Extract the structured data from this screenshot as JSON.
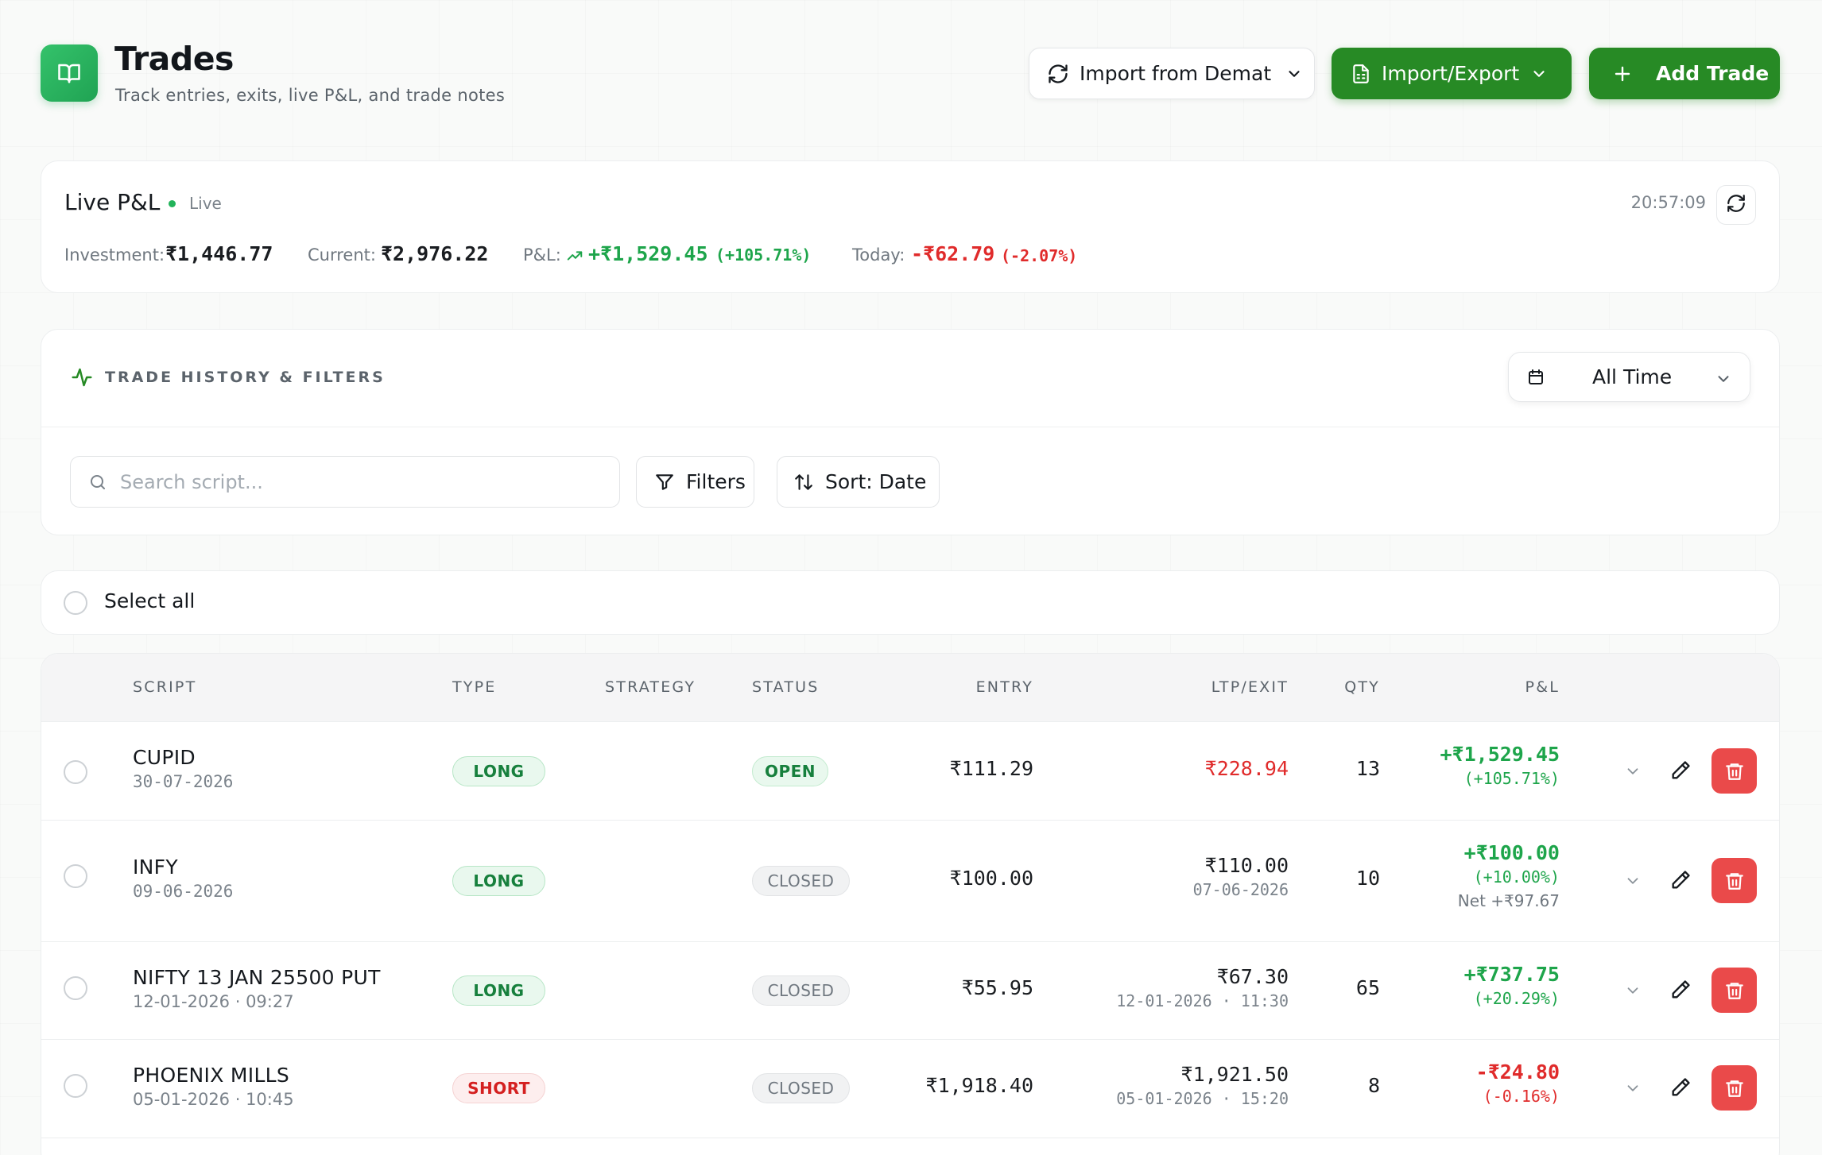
{
  "header": {
    "title": "Trades",
    "subtitle": "Track entries, exits, live P&L, and trade notes",
    "import_demat_label": "Import from Demat",
    "import_export_label": "Import/Export",
    "add_trade_label": "Add Trade"
  },
  "live_pl": {
    "title": "Live P&L",
    "live_label": "Live",
    "time": "20:57:09",
    "investment_label": "Investment:",
    "investment_value": "₹1,446.77",
    "current_label": "Current:",
    "current_value": "₹2,976.22",
    "pl_label": "P&L:",
    "pl_value": "+₹1,529.45",
    "pl_pct": "(+105.71%)",
    "today_label": "Today:",
    "today_value": "-₹62.79",
    "today_pct": "(-2.07%)"
  },
  "history": {
    "title": "TRADE HISTORY & FILTERS",
    "range_label": "All Time",
    "search_placeholder": "Search script...",
    "filters_label": "Filters",
    "sort_label": "Sort: Date"
  },
  "select_all_label": "Select all",
  "table": {
    "headers": {
      "script": "SCRIPT",
      "type": "TYPE",
      "strategy": "STRATEGY",
      "status": "STATUS",
      "entry": "ENTRY",
      "ltp_exit": "LTP/EXIT",
      "qty": "QTY",
      "pl": "P&L"
    },
    "rows": [
      {
        "script": "CUPID",
        "date": "30-07-2026",
        "type": "LONG",
        "strategy": "",
        "status": "OPEN",
        "entry": "₹111.29",
        "ltp": "₹228.94",
        "exit_date": "",
        "qty": "13",
        "pl": "+₹1,529.45",
        "pl_pct": "(+105.71%)",
        "net": ""
      },
      {
        "script": "INFY",
        "date": "09-06-2026",
        "type": "LONG",
        "strategy": "",
        "status": "CLOSED",
        "entry": "₹100.00",
        "ltp": "₹110.00",
        "exit_date": "07-06-2026",
        "qty": "10",
        "pl": "+₹100.00",
        "pl_pct": "(+10.00%)",
        "net": "Net +₹97.67"
      },
      {
        "script": "NIFTY 13 JAN 25500 PUT",
        "date": "12-01-2026 · 09:27",
        "type": "LONG",
        "strategy": "",
        "status": "CLOSED",
        "entry": "₹55.95",
        "ltp": "₹67.30",
        "exit_date": "12-01-2026 · 11:30",
        "qty": "65",
        "pl": "+₹737.75",
        "pl_pct": "(+20.29%)",
        "net": ""
      },
      {
        "script": "PHOENIX MILLS",
        "date": "05-01-2026 · 10:45",
        "type": "SHORT",
        "strategy": "",
        "status": "CLOSED",
        "entry": "₹1,918.40",
        "ltp": "₹1,921.50",
        "exit_date": "05-01-2026 · 15:20",
        "qty": "8",
        "pl": "-₹24.80",
        "pl_pct": "(-0.16%)",
        "net": ""
      }
    ]
  },
  "colors": {
    "brand_green": "#278a25",
    "profit_green": "#1ea54b",
    "loss_red": "#e02b2b",
    "delete_red": "#ea4a4a"
  },
  "icons": {
    "app": "book-open-icon",
    "demat": "refresh-icon",
    "import_export": "file-spreadsheet-icon",
    "add": "plus-icon",
    "history": "activity-pulse-icon",
    "range": "calendar-icon",
    "search": "search-icon",
    "filters": "funnel-icon",
    "sort": "sort-arrows-icon",
    "row_expand": "chevron-down-icon",
    "row_edit": "pencil-icon",
    "row_delete": "trash-icon"
  }
}
